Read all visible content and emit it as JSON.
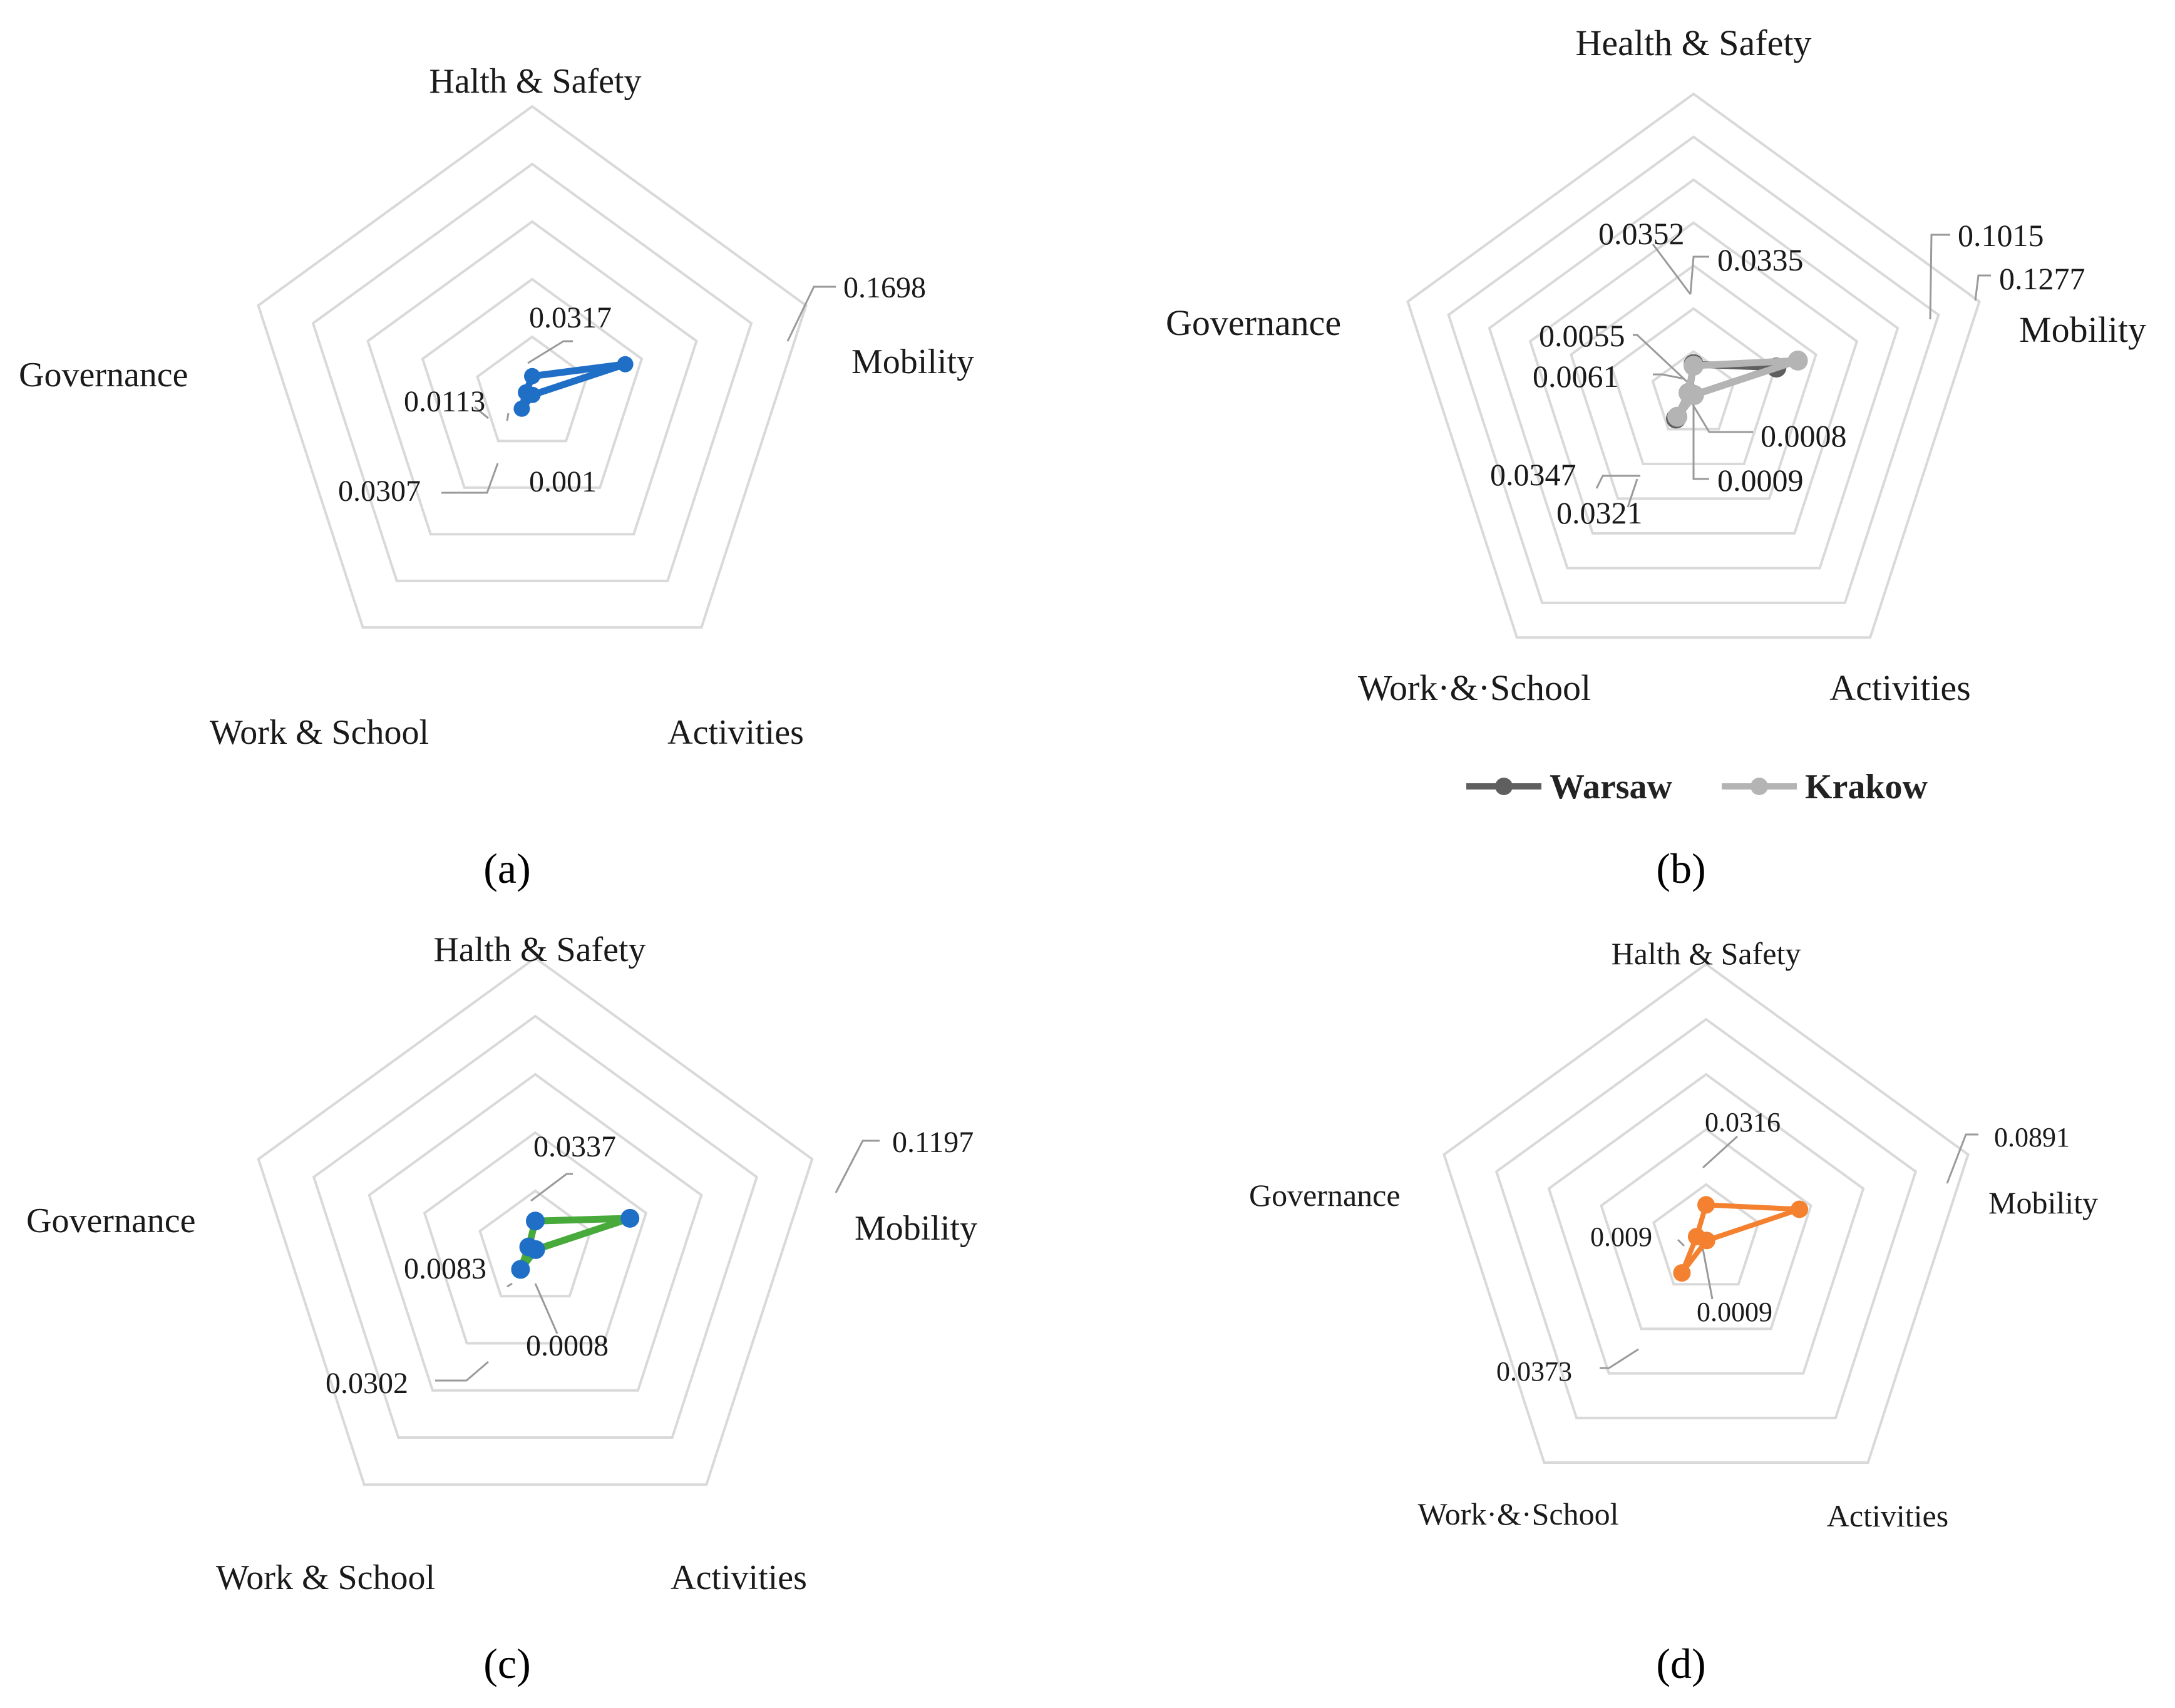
{
  "figure": {
    "grid_color": "#d9d9d9",
    "leader_color": "#9a9a9a"
  },
  "chart_data": [
    {
      "panel": "(a)",
      "type": "radar",
      "categories": [
        "Halth & Safety",
        "Mobility",
        "Activities",
        "Work & School",
        "Governance"
      ],
      "rmax": 0.5,
      "rings": 5,
      "series": [
        {
          "name": "",
          "values": [
            0.0317,
            0.1698,
            0.001,
            0.0307,
            0.0113
          ],
          "color": "#1f6fc6"
        }
      ],
      "value_labels": [
        "0.0317",
        "0.1698",
        "0.001",
        "0.0307",
        "0.0113"
      ]
    },
    {
      "panel": "(b)",
      "type": "radar",
      "categories": [
        "Health & Safety",
        "Mobility",
        "Activities",
        "Work·&·School",
        "Governance"
      ],
      "rmax": 0.35,
      "rings": 7,
      "series": [
        {
          "name": "Warsaw",
          "values": [
            0.0352,
            0.1015,
            0.0008,
            0.0347,
            0.0055
          ],
          "color": "#5f5f5f"
        },
        {
          "name": "Krakow",
          "values": [
            0.0335,
            0.1277,
            0.0009,
            0.0321,
            0.0061
          ],
          "color": "#b4b4b4"
        }
      ],
      "value_labels": [
        "0.0352",
        "0.0335",
        "0.1015",
        "0.1277",
        "0.0008",
        "0.0009",
        "0.0347",
        "0.0321",
        "0.0055",
        "0.0061"
      ],
      "legend": [
        "Warsaw",
        "Krakow"
      ]
    },
    {
      "panel": "(c)",
      "type": "radar",
      "categories": [
        "Halth & Safety",
        "Mobility",
        "Activities",
        "Work & School",
        "Governance"
      ],
      "rmax": 0.35,
      "rings": 5,
      "series": [
        {
          "name": "",
          "values": [
            0.0337,
            0.1197,
            0.0008,
            0.0302,
            0.0083
          ],
          "color": "#49aa3c",
          "marker_color": "#1f6fc6"
        }
      ],
      "value_labels": [
        "0.0337",
        "0.1197",
        "0.0008",
        "0.0302",
        "0.0083"
      ]
    },
    {
      "panel": "(d)",
      "type": "radar",
      "categories": [
        "Halth & Safety",
        "Mobility",
        "Activities",
        "Work·&·School",
        "Governance"
      ],
      "rmax": 0.25,
      "rings": 5,
      "series": [
        {
          "name": "",
          "values": [
            0.0316,
            0.0891,
            0.0009,
            0.0373,
            0.009
          ],
          "color": "#f4812f"
        }
      ],
      "value_labels": [
        "0.0316",
        "0.0891",
        "0.0009",
        "0.0373",
        "0.009"
      ]
    }
  ]
}
